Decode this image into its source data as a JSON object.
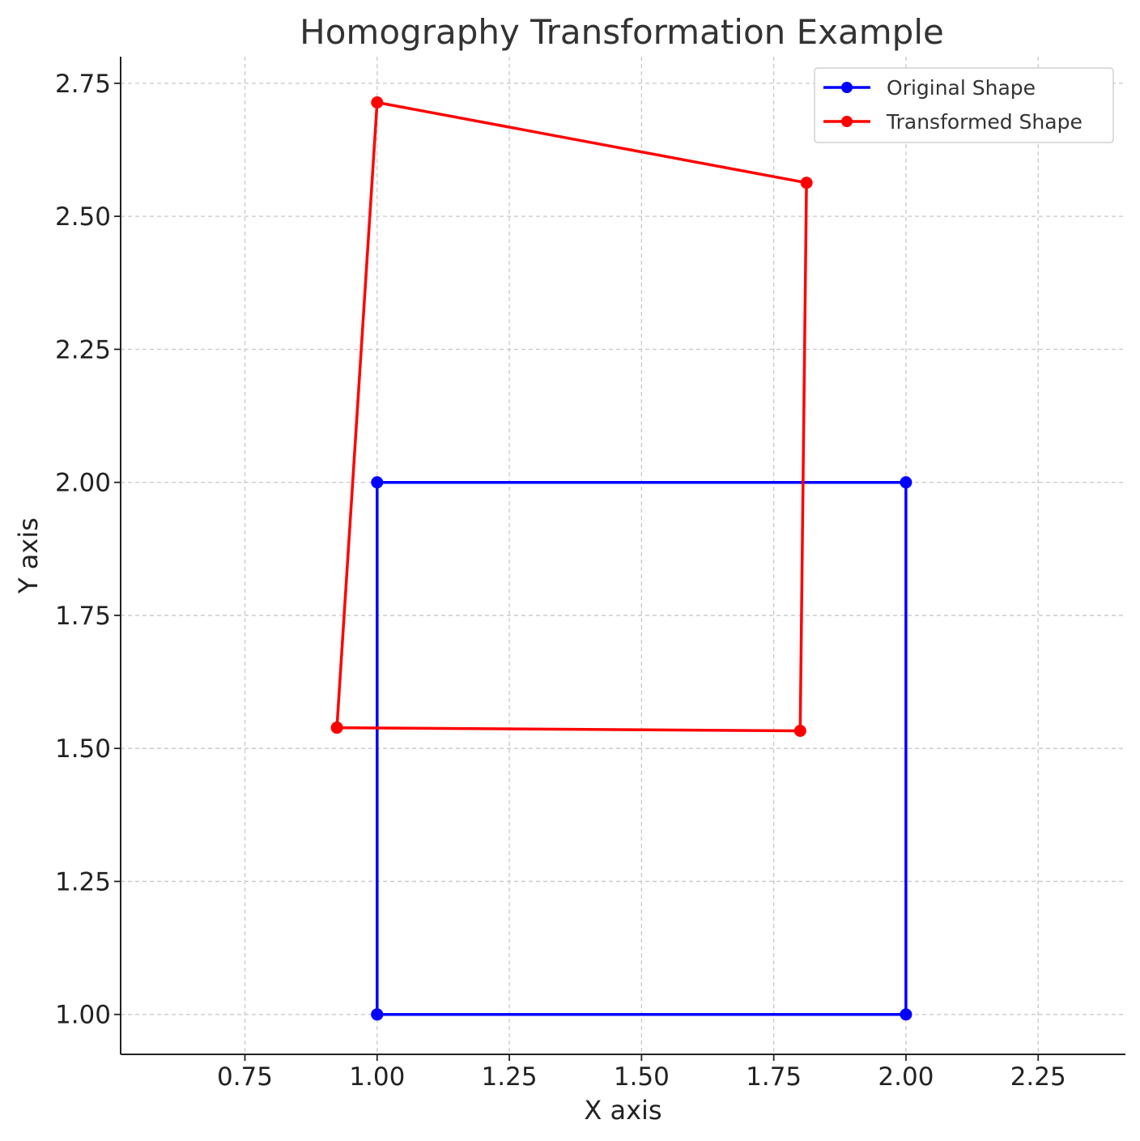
{
  "chart_data": {
    "type": "line",
    "title": "Homography Transformation Example",
    "xlabel": "X axis",
    "ylabel": "Y axis",
    "xlim": [
      0.515,
      2.415
    ],
    "ylim": [
      0.925,
      2.8
    ],
    "xticks": [
      0.75,
      1.0,
      1.25,
      1.5,
      1.75,
      2.0,
      2.25
    ],
    "xtick_labels": [
      "0.75",
      "1.00",
      "1.25",
      "1.50",
      "1.75",
      "2.00",
      "2.25"
    ],
    "yticks": [
      1.0,
      1.25,
      1.5,
      1.75,
      2.0,
      2.25,
      2.5,
      2.75
    ],
    "ytick_labels": [
      "1.00",
      "1.25",
      "1.50",
      "1.75",
      "2.00",
      "2.25",
      "2.50",
      "2.75"
    ],
    "grid": true,
    "legend_position": "top-right",
    "series": [
      {
        "name": "Original Shape",
        "color": "#0000ff",
        "marker": "circle",
        "points": [
          [
            1.0,
            1.0
          ],
          [
            2.0,
            1.0
          ],
          [
            2.0,
            2.0
          ],
          [
            1.0,
            2.0
          ],
          [
            1.0,
            1.0
          ]
        ]
      },
      {
        "name": "Transformed Shape",
        "color": "#ff0000",
        "marker": "circle",
        "points": [
          [
            0.924,
            1.539
          ],
          [
            1.8,
            1.533
          ],
          [
            1.812,
            2.563
          ],
          [
            1.0,
            2.714
          ],
          [
            0.924,
            1.539
          ]
        ]
      }
    ]
  }
}
